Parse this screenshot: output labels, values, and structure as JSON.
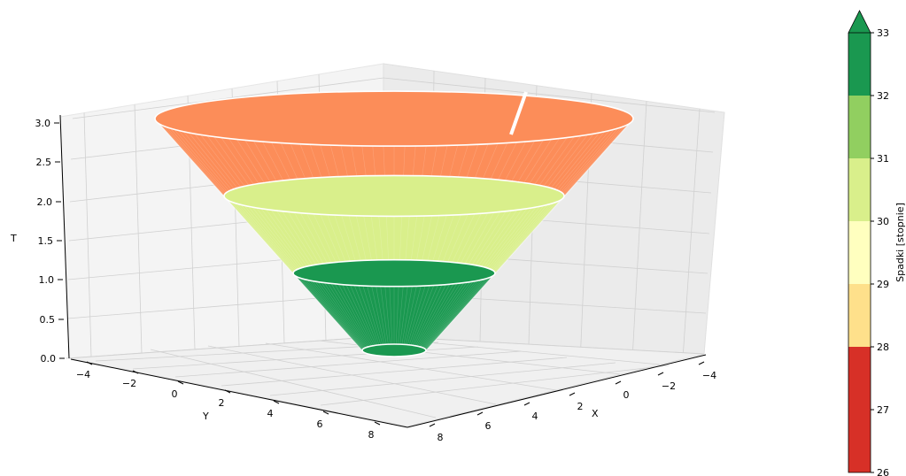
{
  "chart_data": {
    "type": "surface3d",
    "xlabel": "X",
    "ylabel": "Y",
    "zlabel": "T",
    "x_ticks": [
      "−4",
      "−2",
      "0",
      "2",
      "4",
      "6",
      "8"
    ],
    "y_ticks": [
      "−4",
      "−2",
      "0",
      "2",
      "4",
      "6",
      "8"
    ],
    "z_ticks": [
      "0.0",
      "0.5",
      "1.0",
      "1.5",
      "2.0",
      "2.5",
      "3.0"
    ],
    "xlim": [
      -5,
      9
    ],
    "ylim": [
      -5,
      9
    ],
    "zlim": [
      0,
      3.1
    ],
    "grid": true,
    "segments": [
      {
        "z": [
          0.0,
          1.0
        ],
        "color": "#1a9850"
      },
      {
        "z": [
          1.0,
          2.0
        ],
        "color": "#d9ef8b"
      },
      {
        "z": [
          2.0,
          3.0
        ],
        "color": "#fc8d59"
      }
    ],
    "rings_z": [
      0.0,
      1.0,
      2.0,
      3.0
    ],
    "colorbar": {
      "label": "Spadki [stopnie]",
      "ticks": [
        "26",
        "27",
        "28",
        "29",
        "30",
        "31",
        "32",
        "33"
      ],
      "bands": [
        {
          "from": 26,
          "to": 28,
          "color": "#d73027"
        },
        {
          "from": 28,
          "to": 29,
          "color": "#fee08b"
        },
        {
          "from": 29,
          "to": 30,
          "color": "#ffffbf"
        },
        {
          "from": 30,
          "to": 31,
          "color": "#d9ef8b"
        },
        {
          "from": 31,
          "to": 32,
          "color": "#91cf60"
        },
        {
          "from": 32,
          "to": 33,
          "color": "#1a9850"
        }
      ],
      "extend": "max",
      "extend_color": "#1a9850"
    }
  }
}
